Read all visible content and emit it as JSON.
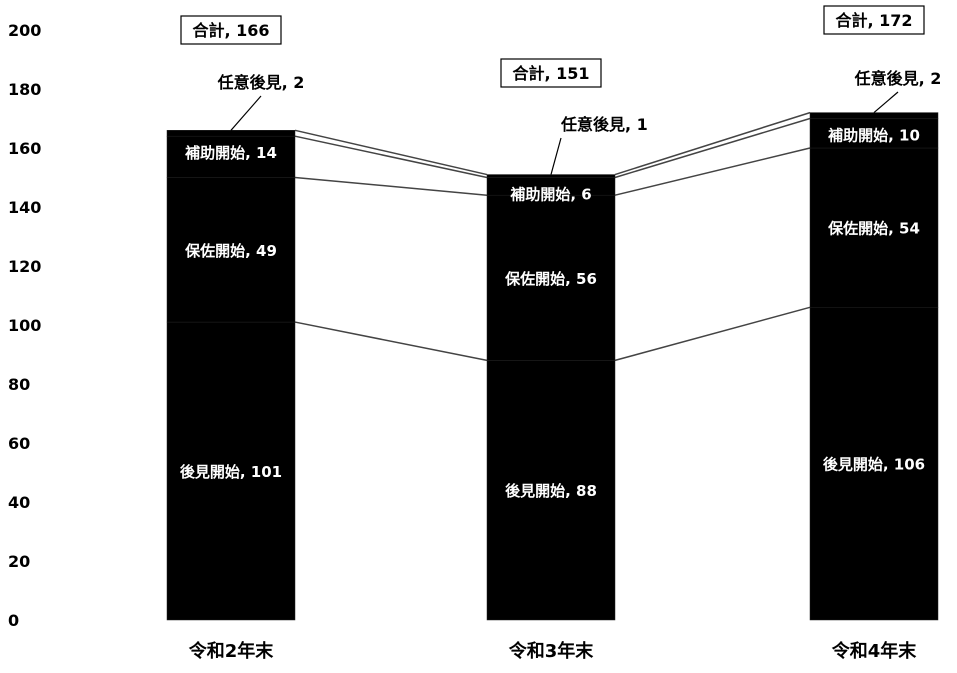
{
  "chart_data": {
    "type": "bar",
    "stacked": true,
    "categories": [
      "令和2年末",
      "令和3年末",
      "令和4年末"
    ],
    "series": [
      {
        "name": "後見開始",
        "values": [
          101,
          88,
          106
        ],
        "color": "#000000"
      },
      {
        "name": "保佐開始",
        "values": [
          49,
          56,
          54
        ],
        "color": "#000000"
      },
      {
        "name": "補助開始",
        "values": [
          14,
          6,
          10
        ],
        "color": "#000000"
      },
      {
        "name": "任意後見",
        "values": [
          2,
          1,
          2
        ],
        "color": "#000000"
      }
    ],
    "totals": [
      166,
      151,
      172
    ],
    "total_label": "合計",
    "ylim": [
      0,
      200
    ],
    "yticks": [
      0,
      20,
      40,
      60,
      80,
      100,
      120,
      140,
      160,
      180,
      200
    ],
    "grid": false,
    "legend": "none",
    "colors": {
      "bar": "#000000",
      "connector": "#444444",
      "label_light": "#ffffff",
      "label_dark": "#000000"
    }
  }
}
